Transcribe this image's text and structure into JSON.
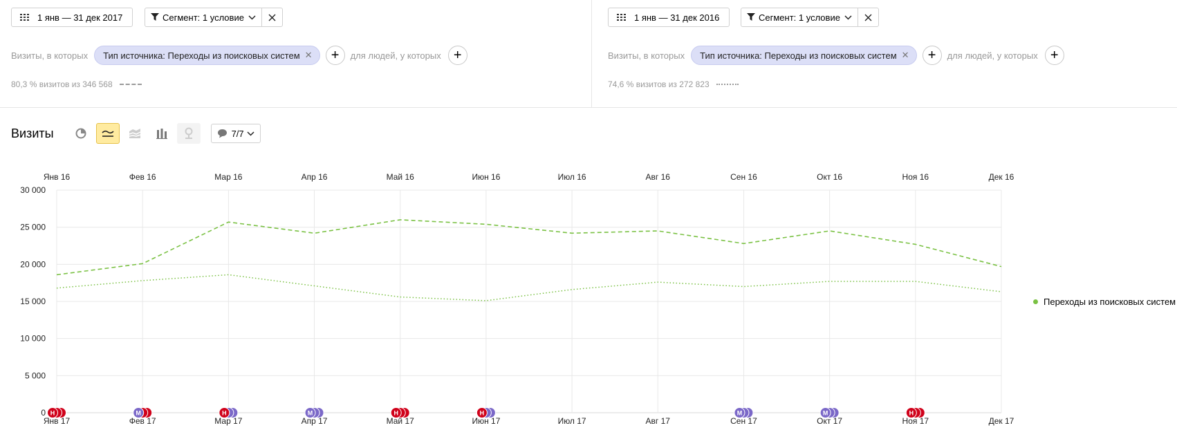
{
  "colors": {
    "series": "#7ac143",
    "chip": "#dcdff7",
    "active": "#ffeba0",
    "note_red": "#d0021b",
    "note_purple": "#7b68c8"
  },
  "left": {
    "date_range": "1 янв — 31 дек 2017",
    "segment_label": "Сегмент: 1 условие",
    "visits_prefix": "Визиты, в которых",
    "chip_label": "Тип источника: Переходы из поисковых систем",
    "people_label": "для людей, у которых",
    "stat": "80,3 % визитов из 346 568"
  },
  "right": {
    "date_range": "1 янв — 31 дек 2016",
    "segment_label": "Сегмент: 1 условие",
    "visits_prefix": "Визиты, в которых",
    "chip_label": "Тип источника: Переходы из поисковых систем",
    "people_label": "для людей, у которых",
    "stat": "74,6 % визитов из 272 823"
  },
  "toolbar": {
    "title": "Визиты",
    "icons": [
      "pie-chart-icon",
      "line-chart-icon",
      "area-chart-icon",
      "bar-chart-icon",
      "map-icon"
    ],
    "notes_label": "7/7"
  },
  "legend": {
    "label": "Переходы из поисковых систем"
  },
  "chart_data": {
    "type": "line",
    "x_top": [
      "Янв 16",
      "Фев 16",
      "Мар 16",
      "Апр 16",
      "Май 16",
      "Июн 16",
      "Июл 16",
      "Авг 16",
      "Сен 16",
      "Окт 16",
      "Ноя 16",
      "Дек 16"
    ],
    "x_bottom": [
      "Янв 17",
      "Фев 17",
      "Мар 17",
      "Апр 17",
      "Май 17",
      "Июн 17",
      "Июл 17",
      "Авг 17",
      "Сен 17",
      "Окт 17",
      "Ноя 17",
      "Дек 17"
    ],
    "y_ticks": [
      "0",
      "5 000",
      "10 000",
      "15 000",
      "20 000",
      "25 000",
      "30 000"
    ],
    "ylim": [
      0,
      30000
    ],
    "grid": true,
    "legend_position": "right",
    "series": [
      {
        "name": "Переходы из поисковых систем",
        "period": "2017",
        "style": "dashed",
        "values": [
          18600,
          20100,
          25700,
          24200,
          26000,
          25400,
          24200,
          24500,
          22800,
          24500,
          22700,
          19700
        ]
      },
      {
        "name": "Переходы из поисковых систем",
        "period": "2016",
        "style": "dotted",
        "values": [
          16800,
          17800,
          18600,
          17100,
          15600,
          15100,
          16600,
          17600,
          17000,
          17700,
          17700,
          16300
        ]
      }
    ],
    "notes": [
      {
        "month": 0,
        "kinds": [
          "red",
          "red",
          "red"
        ],
        "letter": "Н"
      },
      {
        "month": 1,
        "kinds": [
          "purple",
          "red",
          "red"
        ],
        "letter": "М"
      },
      {
        "month": 2,
        "kinds": [
          "red",
          "purple",
          "purple"
        ],
        "letter": "Н"
      },
      {
        "month": 3,
        "kinds": [
          "purple",
          "purple",
          "purple"
        ],
        "letter": "М"
      },
      {
        "month": 4,
        "kinds": [
          "red",
          "red",
          "red"
        ],
        "letter": "Н"
      },
      {
        "month": 5,
        "kinds": [
          "red",
          "purple",
          "purple"
        ],
        "letter": "Н"
      },
      {
        "month": 8,
        "kinds": [
          "purple",
          "purple",
          "purple"
        ],
        "letter": "М"
      },
      {
        "month": 9,
        "kinds": [
          "purple",
          "purple",
          "purple"
        ],
        "letter": "М"
      },
      {
        "month": 10,
        "kinds": [
          "red",
          "red",
          "red"
        ],
        "letter": "Н"
      }
    ]
  }
}
